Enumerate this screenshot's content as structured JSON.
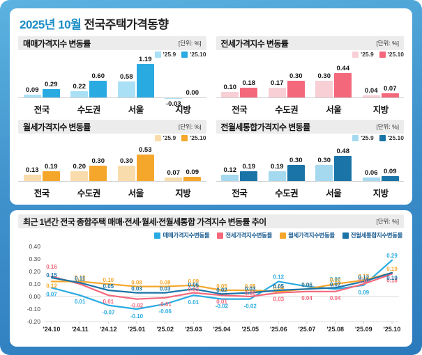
{
  "header": {
    "title_highlight": "2025년 10월",
    "title_rest": " 전국주택가격동향"
  },
  "unit_label": "[단위: %]",
  "chart_data": [
    {
      "type": "bar",
      "id": "sale-price-index",
      "title": "매매가격지수 변동률",
      "unit": "[단위: %]",
      "categories": [
        "전국",
        "수도권",
        "서울",
        "지방"
      ],
      "series": [
        {
          "name": "'25.9",
          "color": "#a9e0f6",
          "values": [
            0.09,
            0.22,
            0.58,
            -0.03
          ]
        },
        {
          "name": "'25.10",
          "color": "#29abe2",
          "values": [
            0.29,
            0.6,
            1.19,
            0.0
          ]
        }
      ]
    },
    {
      "type": "bar",
      "id": "jeonse-price-index",
      "title": "전세가격지수 변동률",
      "unit": "[단위: %]",
      "categories": [
        "전국",
        "수도권",
        "서울",
        "지방"
      ],
      "series": [
        {
          "name": "'25.9",
          "color": "#f9cfd6",
          "values": [
            0.1,
            0.17,
            0.3,
            0.04
          ]
        },
        {
          "name": "'25.10",
          "color": "#f4687c",
          "values": [
            0.18,
            0.3,
            0.44,
            0.07
          ]
        }
      ]
    },
    {
      "type": "bar",
      "id": "monthly-rent-price-index",
      "title": "월세가격지수 변동률",
      "unit": "[단위: %]",
      "categories": [
        "전국",
        "수도권",
        "서울",
        "지방"
      ],
      "series": [
        {
          "name": "'25.9",
          "color": "#f9dcab",
          "values": [
            0.13,
            0.2,
            0.3,
            0.07
          ]
        },
        {
          "name": "'25.10",
          "color": "#f5a72c",
          "values": [
            0.19,
            0.3,
            0.53,
            0.09
          ]
        }
      ]
    },
    {
      "type": "bar",
      "id": "jeonse-monthly-combined-price-index",
      "title": "전월세통합가격지수 변동률",
      "unit": "[단위: %]",
      "categories": [
        "전국",
        "수도권",
        "서울",
        "지방"
      ],
      "series": [
        {
          "name": "'25.9",
          "color": "#a5d9ef",
          "values": [
            0.12,
            0.19,
            0.3,
            0.06
          ]
        },
        {
          "name": "'25.10",
          "color": "#1a74a8",
          "values": [
            0.19,
            0.3,
            0.48,
            0.09
          ]
        }
      ]
    },
    {
      "type": "line",
      "id": "one-year-trend",
      "title": "최근 1년간 전국 종합주택 매매·전세·월세·전월세통합 가격지수 변동률 추이",
      "unit": "[단위: %]",
      "x": [
        "'24.10",
        "'24.11",
        "'24.12",
        "'25.01",
        "'25.02",
        "'25.03",
        "'25.04",
        "'25.05",
        "'25.06",
        "'25.07",
        "'25.08",
        "'25.09",
        "'25.10"
      ],
      "ylim": [
        -0.2,
        0.4
      ],
      "y_ticks": [
        "0.40",
        "0.30",
        "0.20",
        "0.10",
        "0.00",
        "-0.10",
        "-0.20"
      ],
      "series": [
        {
          "name": "매매가격지수변동률",
          "color": "#29abe2",
          "values": [
            0.07,
            0.01,
            -0.07,
            -0.1,
            -0.06,
            0.01,
            -0.02,
            -0.02,
            0.12,
            0.08,
            0.06,
            0.09,
            0.29
          ]
        },
        {
          "name": "전세가격지수변동률",
          "color": "#f4687c",
          "values": [
            0.16,
            0.1,
            0.01,
            -0.02,
            -0.01,
            0.03,
            0.01,
            0.0,
            0.03,
            0.04,
            0.04,
            0.1,
            0.18
          ]
        },
        {
          "name": "월세가격지수변동률",
          "color": "#f5a72c",
          "values": [
            0.12,
            0.12,
            0.1,
            0.08,
            0.08,
            0.09,
            0.05,
            0.05,
            0.04,
            0.06,
            0.1,
            0.13,
            0.19
          ]
        },
        {
          "name": "전월세통합지수변동률",
          "color": "#1a74a8",
          "values": [
            0.15,
            0.11,
            0.05,
            0.03,
            0.03,
            0.06,
            0.02,
            0.03,
            0.05,
            0.06,
            0.07,
            0.12,
            0.19
          ]
        }
      ]
    }
  ]
}
